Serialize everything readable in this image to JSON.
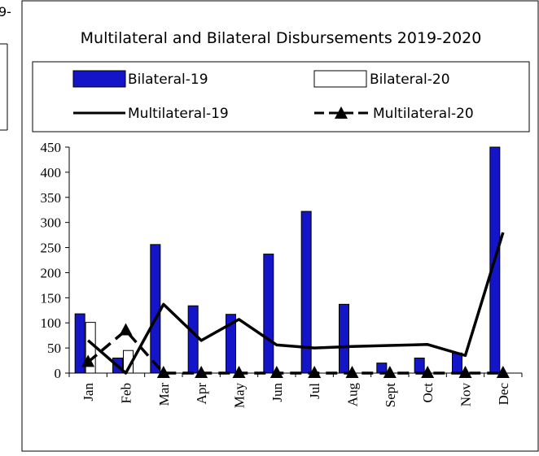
{
  "edge_fragment": "9-",
  "chart_data": {
    "type": "bar",
    "title": "Multilateral and Bilateral Disbursements 2019-2020",
    "xlabel": "",
    "ylabel": "",
    "ylim": [
      0,
      450
    ],
    "yticks": [
      0,
      50,
      100,
      150,
      200,
      250,
      300,
      350,
      400,
      450
    ],
    "grid": false,
    "legend_position": "top",
    "categories": [
      "Jan",
      "Feb",
      "Mar",
      "Apr",
      "May",
      "Jun",
      "Jul",
      "Aug",
      "Sept",
      "Oct",
      "Nov",
      "Dec"
    ],
    "series": [
      {
        "name": "Bilateral-19",
        "type": "bar",
        "color": "#1414c8",
        "values": [
          118,
          30,
          256,
          134,
          117,
          237,
          322,
          137,
          20,
          30,
          40,
          450
        ]
      },
      {
        "name": "Bilateral-20",
        "type": "bar",
        "color": "#ffffff",
        "values": [
          101,
          45,
          0,
          0,
          0,
          0,
          0,
          0,
          0,
          0,
          0,
          0
        ]
      },
      {
        "name": "Multilateral-19",
        "type": "line",
        "color": "#000000",
        "values": [
          65,
          0,
          137,
          65,
          107,
          56,
          50,
          53,
          55,
          57,
          35,
          280
        ]
      },
      {
        "name": "Multilateral-20",
        "type": "line",
        "color": "#000000",
        "dashed": true,
        "marker": "triangle",
        "values": [
          22,
          85,
          0,
          0,
          0,
          0,
          0,
          0,
          0,
          0,
          0,
          0
        ]
      }
    ]
  }
}
